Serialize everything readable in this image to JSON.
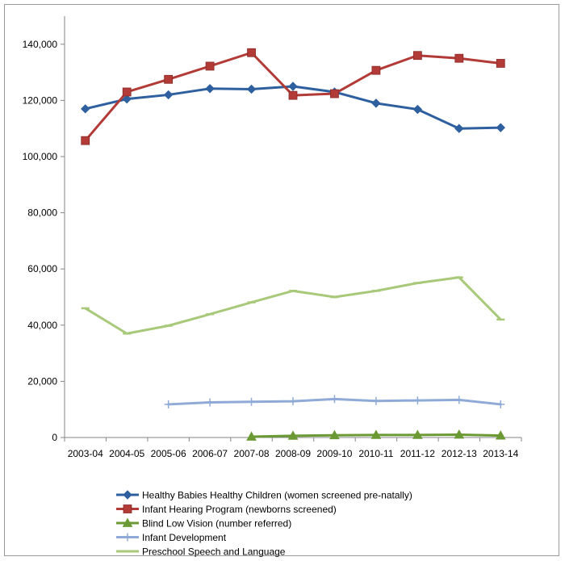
{
  "chart_data": {
    "type": "line",
    "title": "",
    "xlabel": "",
    "ylabel": "",
    "ylim": [
      0,
      150000
    ],
    "yticks": [
      0,
      20000,
      40000,
      60000,
      80000,
      100000,
      120000,
      140000
    ],
    "ytick_labels": [
      "0",
      "20,000",
      "40,000",
      "60,000",
      "80,000",
      "100,000",
      "120,000",
      "140,000"
    ],
    "categories": [
      "2003-04",
      "2004-05",
      "2005-06",
      "2006-07",
      "2007-08",
      "2008-09",
      "2009-10",
      "2010-11",
      "2011-12",
      "2012-13",
      "2013-14"
    ],
    "grid": false,
    "legend_position": "bottom",
    "series": [
      {
        "name": "Healthy Babies Healthy Children (women screened pre-natally)",
        "color": "#2e5f9e",
        "marker": "diamond",
        "values": [
          117000,
          120500,
          122000,
          124200,
          124000,
          125000,
          123000,
          119000,
          116800,
          110000,
          110300
        ]
      },
      {
        "name": "Infant Hearing Program (newborns screened)",
        "color": "#b23a37",
        "marker": "square",
        "values": [
          105700,
          123000,
          127500,
          132200,
          137000,
          121800,
          122400,
          130700,
          136000,
          135000,
          133200
        ]
      },
      {
        "name": "Blind Low Vision (number referred)",
        "color": "#6b9a34",
        "marker": "triangle",
        "values": [
          null,
          null,
          null,
          null,
          300,
          600,
          800,
          900,
          900,
          1000,
          700
        ]
      },
      {
        "name": "Infant Development",
        "color": "#8faad6",
        "marker": "plus",
        "values": [
          null,
          null,
          11800,
          12500,
          12700,
          12900,
          13700,
          13000,
          13200,
          13400,
          11800
        ]
      },
      {
        "name": "Preschool Speech and Language",
        "color": "#a9c97a",
        "marker": "dash",
        "values": [
          46000,
          37000,
          39800,
          43900,
          48100,
          52200,
          50000,
          52200,
          55000,
          57000,
          42000
        ]
      }
    ]
  }
}
